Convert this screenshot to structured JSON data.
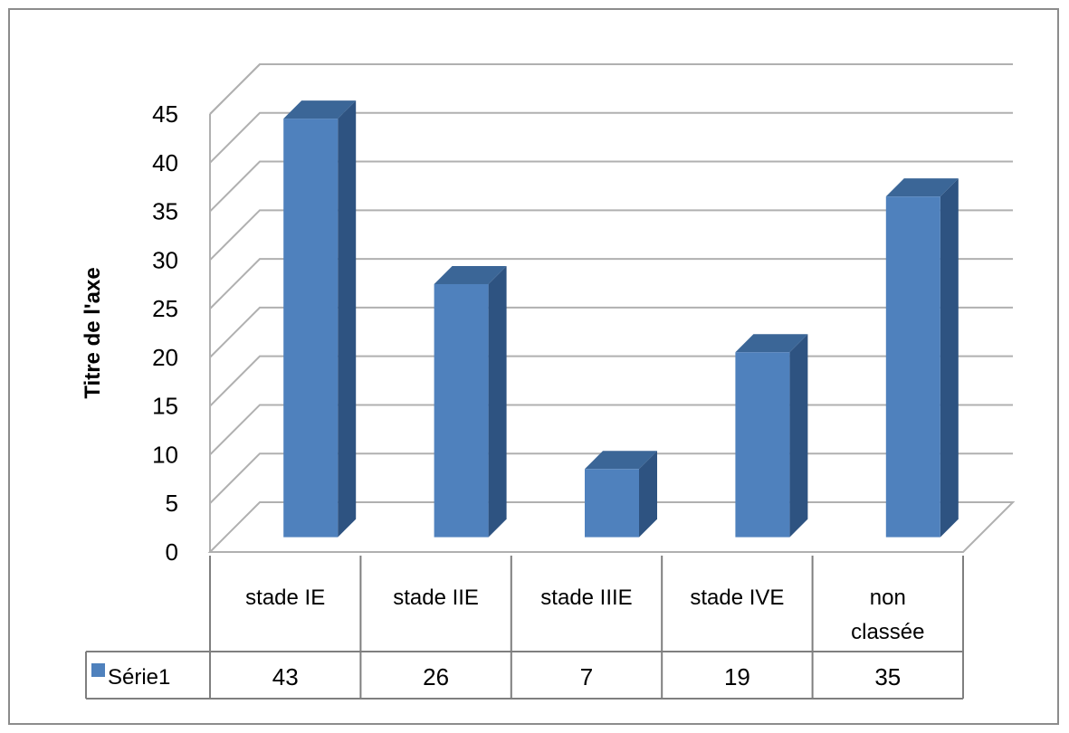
{
  "chart_data": {
    "type": "bar",
    "style": "3d-clustered-column",
    "categories": [
      "stade IE",
      "stade IIE",
      "stade IIIE",
      "stade IVE",
      "non classée"
    ],
    "series": [
      {
        "name": "Série1",
        "values": [
          43,
          26,
          7,
          19,
          35
        ],
        "color": "#4f81bd"
      }
    ],
    "title": "",
    "xlabel": "",
    "ylabel": "Titre de l'axe",
    "ylim": [
      0,
      45
    ],
    "yticks": [
      "0",
      "5",
      "10",
      "15",
      "20",
      "25",
      "30",
      "35",
      "40",
      "45"
    ],
    "grid": true,
    "data_table": true,
    "legend": "data-table-left"
  },
  "colors": {
    "bar_front": "#4f81bd",
    "bar_side": "#2e5381",
    "bar_top": "#3b6697",
    "grid": "#b0b0b0",
    "frame": "#8c8c8c"
  }
}
